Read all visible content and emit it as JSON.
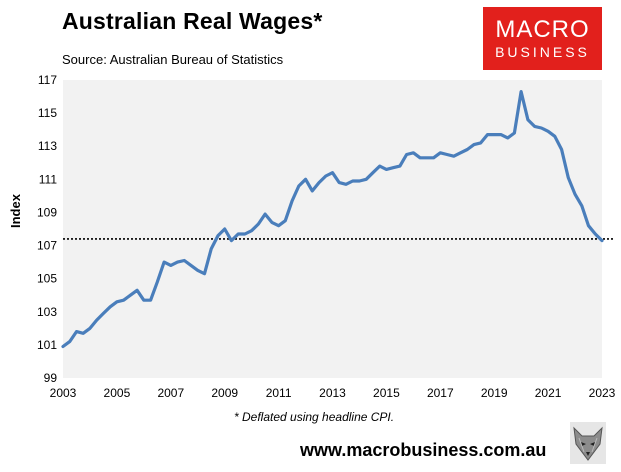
{
  "header": {
    "title": "Australian Real Wages*",
    "source": "Source: Australian Bureau of Statistics"
  },
  "logo": {
    "line1": "MACRO",
    "line2": "BUSINESS"
  },
  "footer": {
    "footnote": "* Deflated using headline CPI.",
    "url": "www.macrobusiness.com.au"
  },
  "colors": {
    "line": "#4a7ebb",
    "logo_bg": "#e2201c",
    "plot_bg": "#f2f2f2"
  },
  "chart_data": {
    "type": "line",
    "title": "Australian Real Wages*",
    "ylabel": "Index",
    "xlabel": "",
    "xlim": [
      2003,
      2023
    ],
    "ylim": [
      99,
      117
    ],
    "xticks": [
      2003,
      2005,
      2007,
      2009,
      2011,
      2013,
      2015,
      2017,
      2019,
      2021,
      2023
    ],
    "yticks": [
      99,
      101,
      103,
      105,
      107,
      109,
      111,
      113,
      115,
      117
    ],
    "grid": false,
    "reference_line": {
      "y": 107.4,
      "style": "dotted"
    },
    "series": [
      {
        "x": [
          2003.0,
          2003.25,
          2003.5,
          2003.75,
          2004.0,
          2004.25,
          2004.5,
          2004.75,
          2005.0,
          2005.25,
          2005.5,
          2005.75,
          2006.0,
          2006.25,
          2006.5,
          2006.75,
          2007.0,
          2007.25,
          2007.5,
          2007.75,
          2008.0,
          2008.25,
          2008.5,
          2008.75,
          2009.0,
          2009.25,
          2009.5,
          2009.75,
          2010.0,
          2010.25,
          2010.5,
          2010.75,
          2011.0,
          2011.25,
          2011.5,
          2011.75,
          2012.0,
          2012.25,
          2012.5,
          2012.75,
          2013.0,
          2013.25,
          2013.5,
          2013.75,
          2014.0,
          2014.25,
          2014.5,
          2014.75,
          2015.0,
          2015.25,
          2015.5,
          2015.75,
          2016.0,
          2016.25,
          2016.5,
          2016.75,
          2017.0,
          2017.25,
          2017.5,
          2017.75,
          2018.0,
          2018.25,
          2018.5,
          2018.75,
          2019.0,
          2019.25,
          2019.5,
          2019.75,
          2020.0,
          2020.25,
          2020.5,
          2020.75,
          2021.0,
          2021.25,
          2021.5,
          2021.75,
          2022.0,
          2022.25,
          2022.5,
          2022.75,
          2023.0
        ],
        "values": [
          100.9,
          101.2,
          101.8,
          101.7,
          102.0,
          102.5,
          102.9,
          103.3,
          103.6,
          103.7,
          104.0,
          104.3,
          103.7,
          103.7,
          104.8,
          106.0,
          105.8,
          106.0,
          106.1,
          105.8,
          105.5,
          105.3,
          106.8,
          107.6,
          108.0,
          107.3,
          107.7,
          107.7,
          107.9,
          108.3,
          108.9,
          108.4,
          108.2,
          108.5,
          109.7,
          110.6,
          111.0,
          110.3,
          110.8,
          111.2,
          111.4,
          110.8,
          110.7,
          110.9,
          110.9,
          111.0,
          111.4,
          111.8,
          111.6,
          111.7,
          111.8,
          112.5,
          112.6,
          112.3,
          112.3,
          112.3,
          112.6,
          112.5,
          112.4,
          112.6,
          112.8,
          113.1,
          113.2,
          113.7,
          113.7,
          113.7,
          113.5,
          113.8,
          116.3,
          114.6,
          114.2,
          114.1,
          113.9,
          113.6,
          112.8,
          111.1,
          110.1,
          109.4,
          108.2,
          107.7,
          107.3
        ]
      }
    ]
  }
}
